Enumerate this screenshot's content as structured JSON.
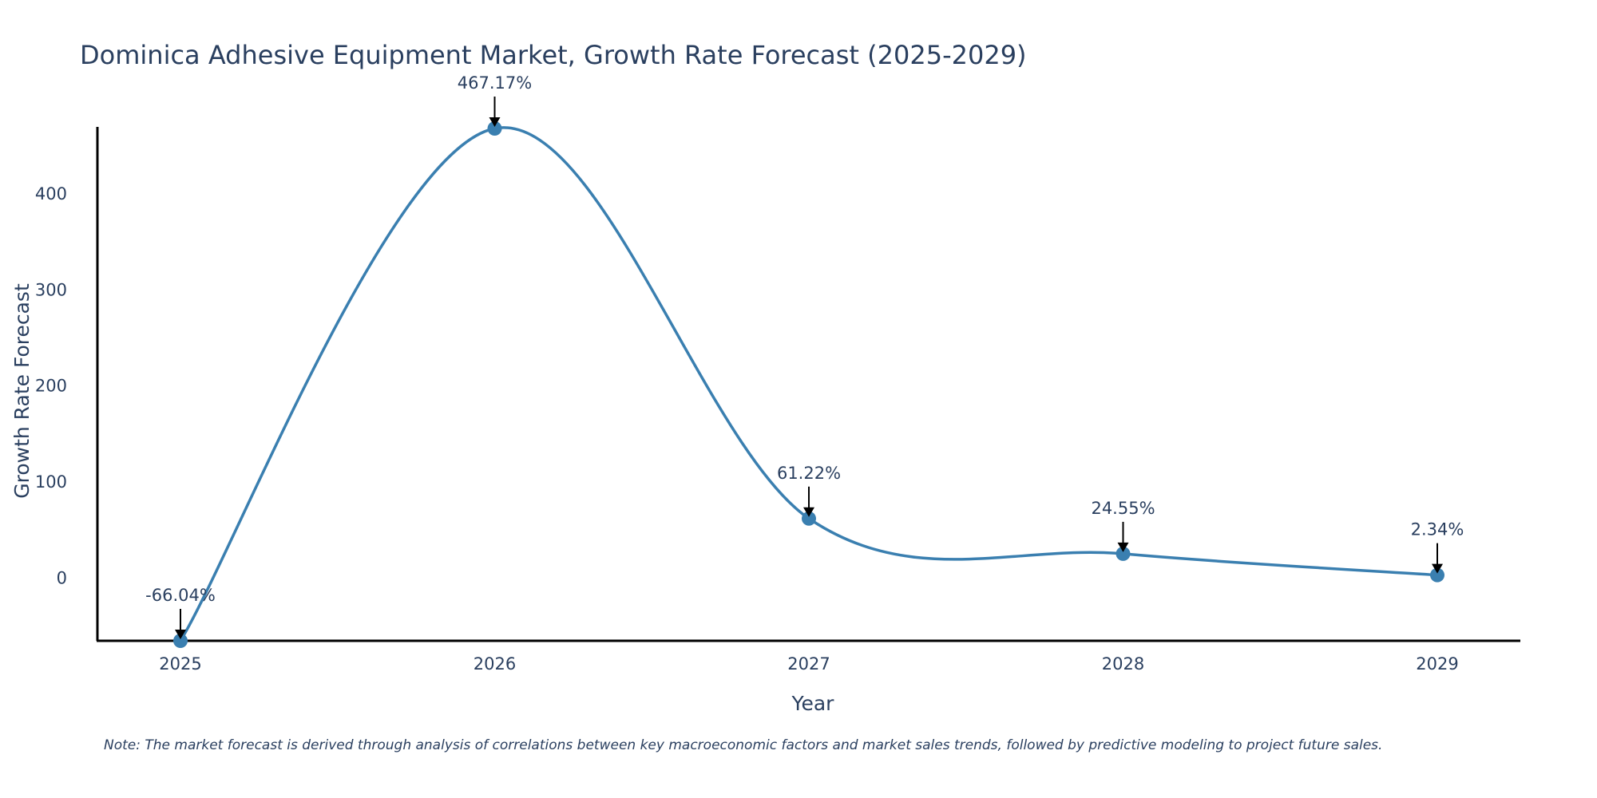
{
  "colors": {
    "series": "#3a7fb0",
    "marker": "#3a7fb0",
    "axis": "#000000",
    "text": "#2a3f5f",
    "arrow": "#000000"
  },
  "chart_data": {
    "type": "line",
    "title": "Dominica Adhesive Equipment Market, Growth Rate Forecast (2025-2029)",
    "xlabel": "Year",
    "ylabel": "Growth Rate Forecast",
    "x": [
      "2025",
      "2026",
      "2027",
      "2028",
      "2029"
    ],
    "series": [
      {
        "name": "Growth Rate Forecast",
        "values": [
          -66.04,
          467.17,
          61.22,
          24.55,
          2.34
        ]
      }
    ],
    "data_labels": [
      "-66.04%",
      "467.17%",
      "61.22%",
      "24.55%",
      "2.34%"
    ],
    "y_ticks": [
      0,
      100,
      200,
      300,
      400
    ],
    "y_tick_labels": [
      "0",
      "100",
      "200",
      "300",
      "400"
    ],
    "ylim": [
      -66.04,
      467.17
    ],
    "grid": false,
    "line_shape": "spline",
    "note": "Note: The market forecast is derived through analysis of correlations between key macroeconomic factors and market sales trends, followed by predictive modeling to project future sales."
  }
}
